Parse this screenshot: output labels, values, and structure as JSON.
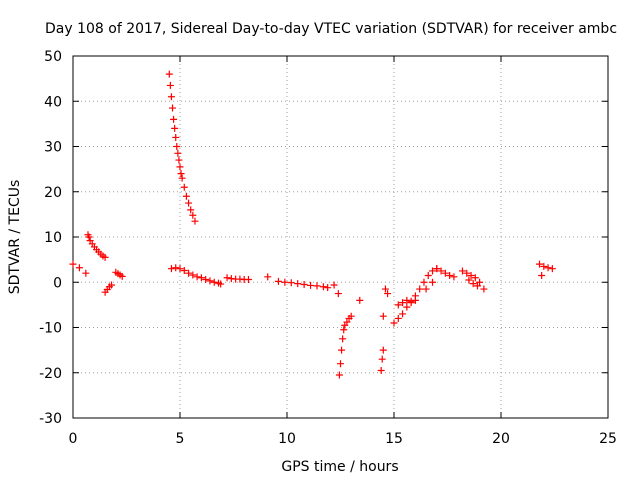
{
  "chart_data": {
    "type": "scatter",
    "title": "Day 108 of 2017, Sidereal Day-to-day VTEC variation (SDTVAR) for receiver ambc",
    "xlabel": "GPS time / hours",
    "ylabel": "SDTVAR / TECUs",
    "xlim": [
      0,
      25
    ],
    "ylim": [
      -30,
      50
    ],
    "xticks": [
      0,
      5,
      10,
      15,
      20,
      25
    ],
    "yticks": [
      -30,
      -20,
      -10,
      0,
      10,
      20,
      30,
      40,
      50
    ],
    "grid": true,
    "marker": "+",
    "color": "#ff0000",
    "series": [
      {
        "name": "SDTVAR",
        "points": [
          [
            0.0,
            4.0
          ],
          [
            0.3,
            3.2
          ],
          [
            0.6,
            2.0
          ],
          [
            0.7,
            10.5
          ],
          [
            0.75,
            10.0
          ],
          [
            0.8,
            9.2
          ],
          [
            0.9,
            8.5
          ],
          [
            1.0,
            7.8
          ],
          [
            1.1,
            7.2
          ],
          [
            1.2,
            6.7
          ],
          [
            1.3,
            6.2
          ],
          [
            1.4,
            5.8
          ],
          [
            1.5,
            5.5
          ],
          [
            1.5,
            -2.2
          ],
          [
            1.6,
            -1.6
          ],
          [
            1.7,
            -1.0
          ],
          [
            1.8,
            -0.6
          ],
          [
            2.0,
            2.2
          ],
          [
            2.1,
            1.9
          ],
          [
            2.2,
            1.6
          ],
          [
            2.3,
            1.3
          ],
          [
            4.5,
            46.0
          ],
          [
            4.55,
            43.5
          ],
          [
            4.6,
            41.0
          ],
          [
            4.65,
            38.5
          ],
          [
            4.7,
            36.0
          ],
          [
            4.75,
            34.0
          ],
          [
            4.8,
            32.0
          ],
          [
            4.85,
            30.0
          ],
          [
            4.9,
            28.5
          ],
          [
            4.95,
            27.0
          ],
          [
            5.0,
            25.5
          ],
          [
            5.05,
            24.0
          ],
          [
            5.1,
            23.0
          ],
          [
            5.2,
            21.0
          ],
          [
            5.3,
            19.0
          ],
          [
            5.4,
            17.5
          ],
          [
            5.5,
            16.0
          ],
          [
            5.6,
            14.8
          ],
          [
            5.7,
            13.5
          ],
          [
            4.6,
            3.0
          ],
          [
            4.8,
            3.2
          ],
          [
            5.0,
            3.0
          ],
          [
            5.2,
            2.6
          ],
          [
            5.4,
            2.0
          ],
          [
            5.6,
            1.6
          ],
          [
            5.8,
            1.2
          ],
          [
            6.0,
            1.0
          ],
          [
            6.2,
            0.6
          ],
          [
            6.4,
            0.3
          ],
          [
            6.6,
            0.0
          ],
          [
            6.8,
            -0.2
          ],
          [
            6.9,
            -0.4
          ],
          [
            7.2,
            1.0
          ],
          [
            7.4,
            0.8
          ],
          [
            7.6,
            0.7
          ],
          [
            7.8,
            0.7
          ],
          [
            8.0,
            0.6
          ],
          [
            8.2,
            0.6
          ],
          [
            9.1,
            1.2
          ],
          [
            9.6,
            0.2
          ],
          [
            9.9,
            0.0
          ],
          [
            10.2,
            -0.1
          ],
          [
            10.5,
            -0.3
          ],
          [
            10.8,
            -0.5
          ],
          [
            11.1,
            -0.7
          ],
          [
            11.4,
            -0.8
          ],
          [
            11.7,
            -1.0
          ],
          [
            11.9,
            -1.2
          ],
          [
            12.2,
            -0.6
          ],
          [
            12.4,
            -2.5
          ],
          [
            12.45,
            -20.5
          ],
          [
            12.5,
            -18.0
          ],
          [
            12.55,
            -15.0
          ],
          [
            12.6,
            -12.5
          ],
          [
            12.65,
            -10.5
          ],
          [
            12.7,
            -9.5
          ],
          [
            12.8,
            -8.8
          ],
          [
            12.9,
            -8.0
          ],
          [
            13.0,
            -7.5
          ],
          [
            13.4,
            -4.0
          ],
          [
            14.4,
            -19.5
          ],
          [
            14.45,
            -17.0
          ],
          [
            14.5,
            -15.0
          ],
          [
            14.5,
            -7.5
          ],
          [
            14.6,
            -1.5
          ],
          [
            14.7,
            -2.5
          ],
          [
            15.0,
            -9.0
          ],
          [
            15.2,
            -8.0
          ],
          [
            15.4,
            -7.0
          ],
          [
            15.6,
            -5.5
          ],
          [
            15.8,
            -4.5
          ],
          [
            16.0,
            -3.0
          ],
          [
            16.2,
            -1.5
          ],
          [
            16.4,
            0.0
          ],
          [
            16.6,
            1.5
          ],
          [
            16.8,
            2.5
          ],
          [
            17.0,
            3.0
          ],
          [
            17.2,
            2.5
          ],
          [
            17.4,
            2.0
          ],
          [
            17.6,
            1.5
          ],
          [
            17.8,
            1.2
          ],
          [
            15.2,
            -5.0
          ],
          [
            15.4,
            -4.5
          ],
          [
            15.6,
            -4.0
          ],
          [
            15.8,
            -4.2
          ],
          [
            16.0,
            -4.0
          ],
          [
            16.5,
            -1.5
          ],
          [
            16.8,
            0.0
          ],
          [
            17.0,
            3.0
          ],
          [
            18.2,
            2.5
          ],
          [
            18.4,
            2.0
          ],
          [
            18.6,
            1.5
          ],
          [
            18.8,
            1.0
          ],
          [
            19.0,
            0.0
          ],
          [
            19.2,
            -1.5
          ],
          [
            18.5,
            0.5
          ],
          [
            18.7,
            -0.3
          ],
          [
            18.9,
            -0.8
          ],
          [
            21.8,
            4.0
          ],
          [
            22.0,
            3.5
          ],
          [
            22.2,
            3.2
          ],
          [
            22.4,
            3.0
          ],
          [
            21.9,
            1.5
          ]
        ]
      }
    ]
  }
}
